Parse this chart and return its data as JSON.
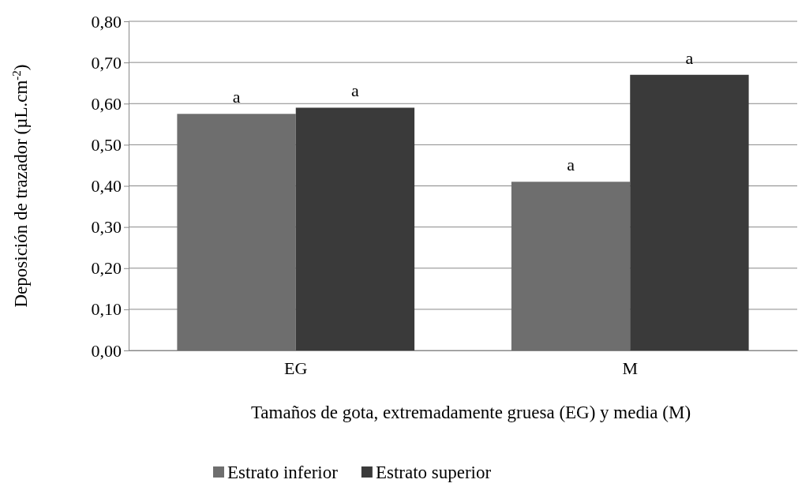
{
  "chart_data": {
    "type": "bar",
    "xlabel": "Tamaños de gota, extremadamente gruesa (EG) y media (M)",
    "ylabel": "Deposición de  trazador (µL.cm$^{-2}$)",
    "categories": [
      "EG",
      "M"
    ],
    "series": [
      {
        "name": "Estrato inferior",
        "color": "#6e6e6e",
        "values": [
          0.575,
          0.41
        ]
      },
      {
        "name": "Estrato superior",
        "color": "#3a3a3a",
        "values": [
          0.59,
          0.67
        ]
      }
    ],
    "ylim": [
      0,
      0.8
    ],
    "yticks": [
      {
        "value": 0,
        "label": "0,00"
      },
      {
        "value": 0.1,
        "label": "0,10"
      },
      {
        "value": 0.2,
        "label": "0,20"
      },
      {
        "value": 0.3,
        "label": "0,30"
      },
      {
        "value": 0.4,
        "label": "0,40"
      },
      {
        "value": 0.5,
        "label": "0,50"
      },
      {
        "value": 0.6,
        "label": "0,60"
      },
      {
        "value": 0.7,
        "label": "0,70"
      },
      {
        "value": 0.8,
        "label": "0,80"
      }
    ],
    "grid": "y",
    "legend": "bottom",
    "annotations": [
      "a",
      "a",
      "a",
      "a"
    ]
  }
}
